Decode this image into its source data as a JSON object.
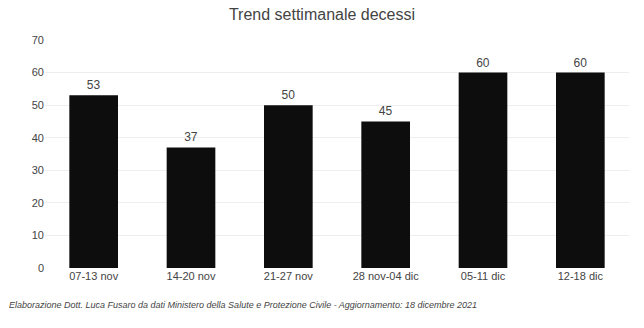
{
  "chart_data": {
    "type": "bar",
    "title": "Trend settimanale decessi",
    "categories": [
      "07-13 nov",
      "14-20 nov",
      "21-27 nov",
      "28 nov-04 dic",
      "05-11 dic",
      "12-18 dic"
    ],
    "values": [
      53,
      37,
      50,
      45,
      60,
      60
    ],
    "color": "#0d0d0d",
    "ylim": [
      0,
      70
    ],
    "yticks": [
      0,
      10,
      20,
      30,
      40,
      50,
      60,
      70
    ],
    "grid": true,
    "data_labels": true,
    "annotations": [
      "Elaborazione Dott. Luca Fusaro da dati Ministero della Salute e Protezione Civile - Aggiornamento: 18 dicembre 2021"
    ]
  }
}
